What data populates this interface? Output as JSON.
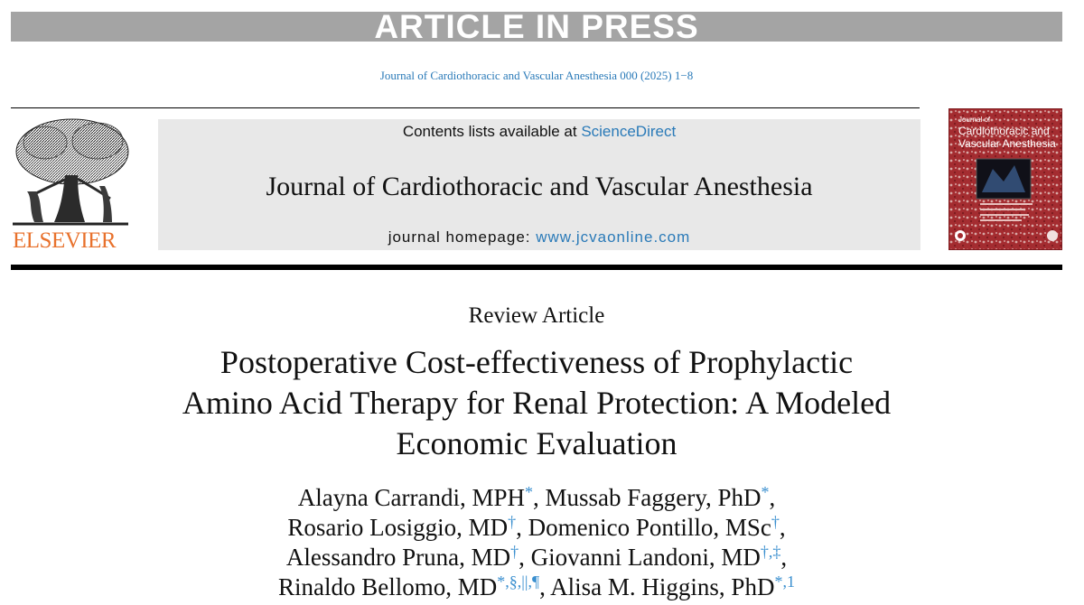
{
  "banner": "ARTICLE IN PRESS",
  "citation": "Journal of Cardiothoracic and Vascular Anesthesia 000 (2025) 1−8",
  "publisher": "ELSEVIER",
  "masthead": {
    "contents_prefix": "Contents lists available at ",
    "contents_link": "ScienceDirect",
    "journal_title": "Journal of Cardiothoracic and Vascular Anesthesia",
    "homepage_prefix": "journal homepage: ",
    "homepage_link": "www.jcvaonline.com"
  },
  "cover": {
    "title_line1": "Journal of",
    "title_line2": "Cardiothoracic and",
    "title_line3": "Vascular Anesthesia"
  },
  "article_type": "Review Article",
  "title_lines": [
    "Postoperative Cost-effectiveness of Prophylactic",
    "Amino Acid Therapy for Renal Protection: A Modeled",
    "Economic Evaluation"
  ],
  "authors": [
    [
      {
        "name": "Alayna Carrandi, MPH",
        "aff": "*",
        "after": ", "
      },
      {
        "name": "Mussab Faggery, PhD",
        "aff": "*",
        "after": ","
      }
    ],
    [
      {
        "name": "Rosario Losiggio, MD",
        "aff": "†",
        "after": ", "
      },
      {
        "name": "Domenico Pontillo, MSc",
        "aff": "†",
        "after": ","
      }
    ],
    [
      {
        "name": "Alessandro Pruna, MD",
        "aff": "†",
        "after": ", "
      },
      {
        "name": "Giovanni Landoni, MD",
        "aff": "†,‡",
        "after": ","
      }
    ],
    [
      {
        "name": "Rinaldo Bellomo, MD",
        "aff": "*,§,||,¶",
        "after": ", "
      },
      {
        "name": "Alisa M. Higgins, PhD",
        "aff": "*,1",
        "after": ""
      }
    ]
  ],
  "colors": {
    "link_blue": "#2a7ab8",
    "elsevier_orange": "#e8712c",
    "banner_gray": "#a4a4a4",
    "masthead_gray": "#e8e8e8",
    "cover_red": "#a42c30"
  }
}
